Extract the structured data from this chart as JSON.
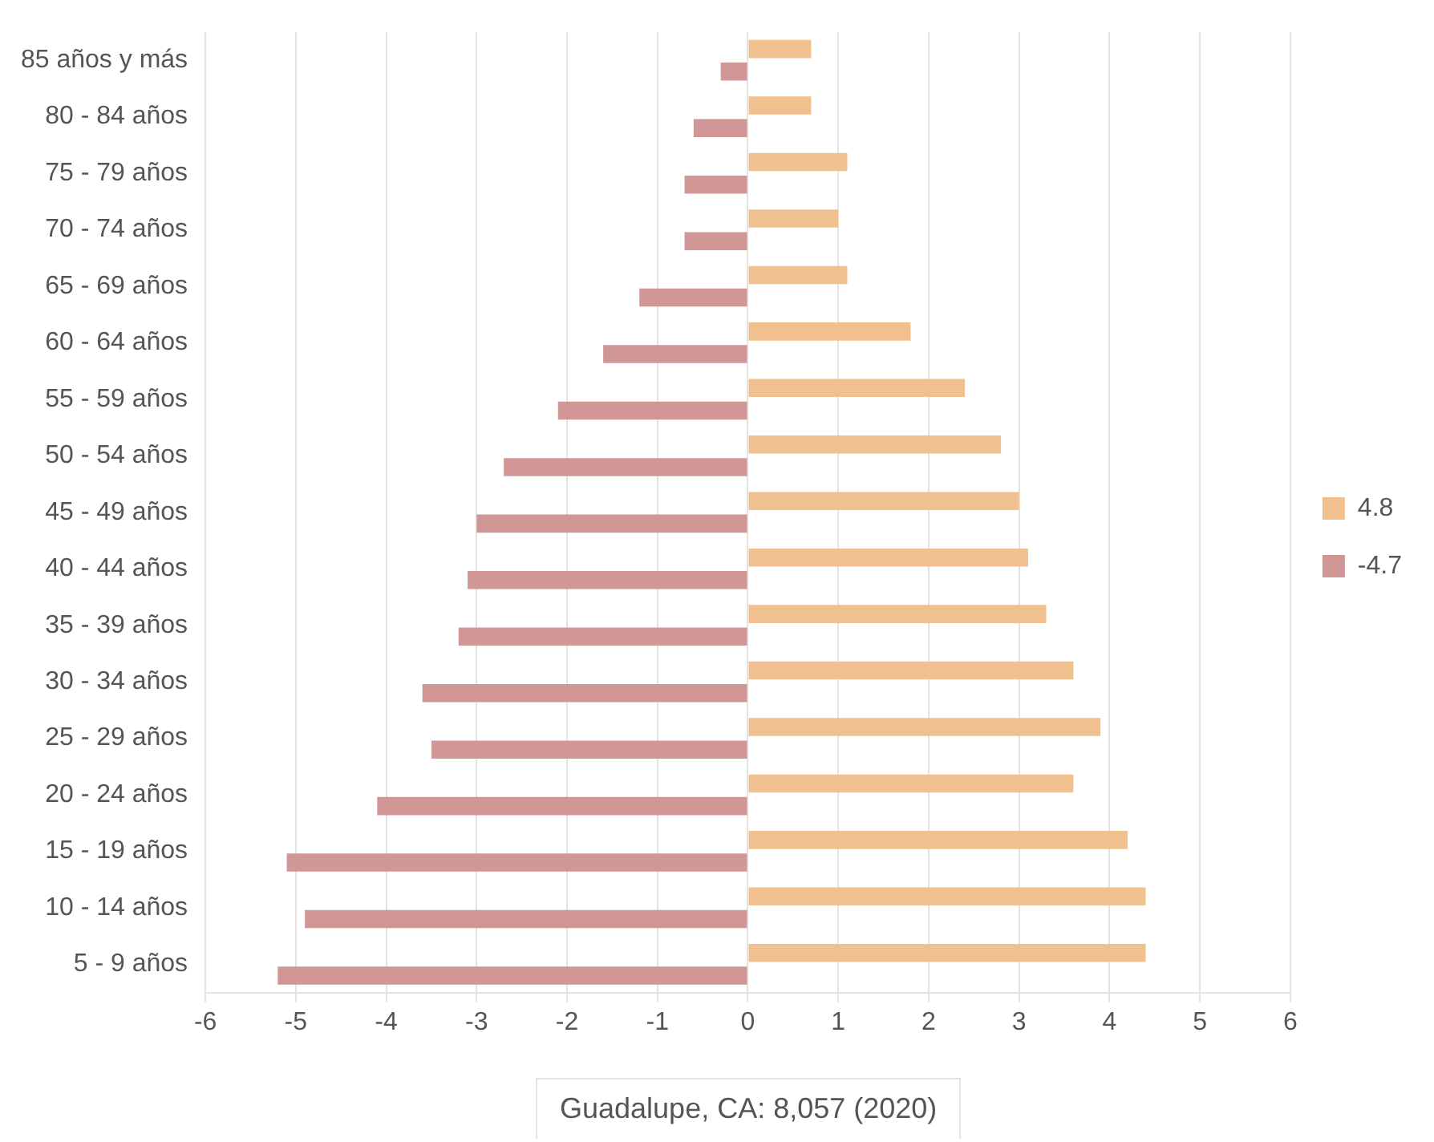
{
  "chart_data": {
    "type": "bar",
    "orientation": "horizontal",
    "categories": [
      "85 años y más",
      "80 - 84 años",
      "75 - 79 años",
      "70 - 74 años",
      "65 - 69 años",
      "60 - 64 años",
      "55 - 59 años",
      "50 - 54 años",
      "45 - 49 años",
      "40 - 44 años",
      "35 - 39 años",
      "30 - 34 años",
      "25 - 29 años",
      "20 - 24 años",
      "15 - 19 años",
      "10 - 14 años",
      "5 - 9 años"
    ],
    "series": [
      {
        "name": "4.8",
        "color": "#f0c18f",
        "values": [
          0.7,
          0.7,
          1.1,
          1.0,
          1.1,
          1.8,
          2.4,
          2.8,
          3.0,
          3.1,
          3.3,
          3.6,
          3.9,
          3.6,
          4.2,
          4.4,
          4.4
        ]
      },
      {
        "name": "-4.7",
        "color": "#d19696",
        "values": [
          -0.3,
          -0.6,
          -0.7,
          -0.7,
          -1.2,
          -1.6,
          -2.1,
          -2.7,
          -3.0,
          -3.1,
          -3.2,
          -3.6,
          -3.5,
          -4.1,
          -5.1,
          -4.9,
          -5.2
        ]
      }
    ],
    "xlim": [
      -6,
      6
    ],
    "xticks": [
      -6,
      -5,
      -4,
      -3,
      -2,
      -1,
      0,
      1,
      2,
      3,
      4,
      5,
      6
    ],
    "grid": "x",
    "legend": "right",
    "annotations": [
      "Guadalupe, CA: 8,057 (2020)"
    ]
  }
}
